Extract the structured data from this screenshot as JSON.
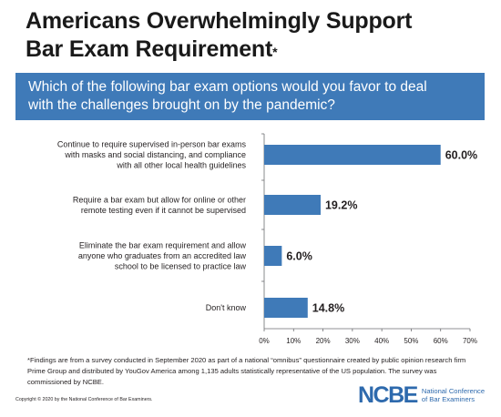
{
  "title": {
    "line1": "Americans Overwhelmingly Support",
    "line2": "Bar Exam Requirement",
    "marker": "*"
  },
  "question": {
    "line1": "Which of the following bar exam options would you favor to deal",
    "line2": "with the challenges brought on by the pandemic?"
  },
  "colors": {
    "bar": "#3f7ab8",
    "band": "#3f7ab8",
    "logo": "#2e6aad"
  },
  "chart_data": {
    "type": "bar",
    "orientation": "horizontal",
    "categories": [
      [
        "Continue to require supervised in-person bar exams",
        "with masks and social distancing, and compliance",
        "with all other local health guidelines"
      ],
      [
        "Require a bar exam but allow for online or other",
        "remote testing even if it cannot be supervised"
      ],
      [
        "Eliminate the bar exam requirement and allow",
        "anyone who graduates from an accredited law",
        "school to be licensed to practice law"
      ],
      [
        "Don't know"
      ]
    ],
    "values": [
      60.0,
      19.2,
      6.0,
      14.8
    ],
    "data_labels": [
      "60.0%",
      "19.2%",
      "6.0%",
      "14.8%"
    ],
    "xlim": [
      0,
      70
    ],
    "xticks": [
      "0%",
      "10%",
      "20%",
      "30%",
      "40%",
      "50%",
      "60%",
      "70%"
    ],
    "grid": false
  },
  "footnote": "*Findings are from a survey conducted in September 2020 as part of a national “omnibus” questionnaire created by public opinion research firm Prime Group and distributed by YouGov America among 1,135 adults statistically representative of the US population. The survey was commissioned by NCBE.",
  "copyright": "Copyright © 2020 by the National Conference of Bar Examiners.",
  "logo": {
    "mark": "NCBE",
    "line1": "National Conference",
    "line2": "of Bar Examiners"
  }
}
